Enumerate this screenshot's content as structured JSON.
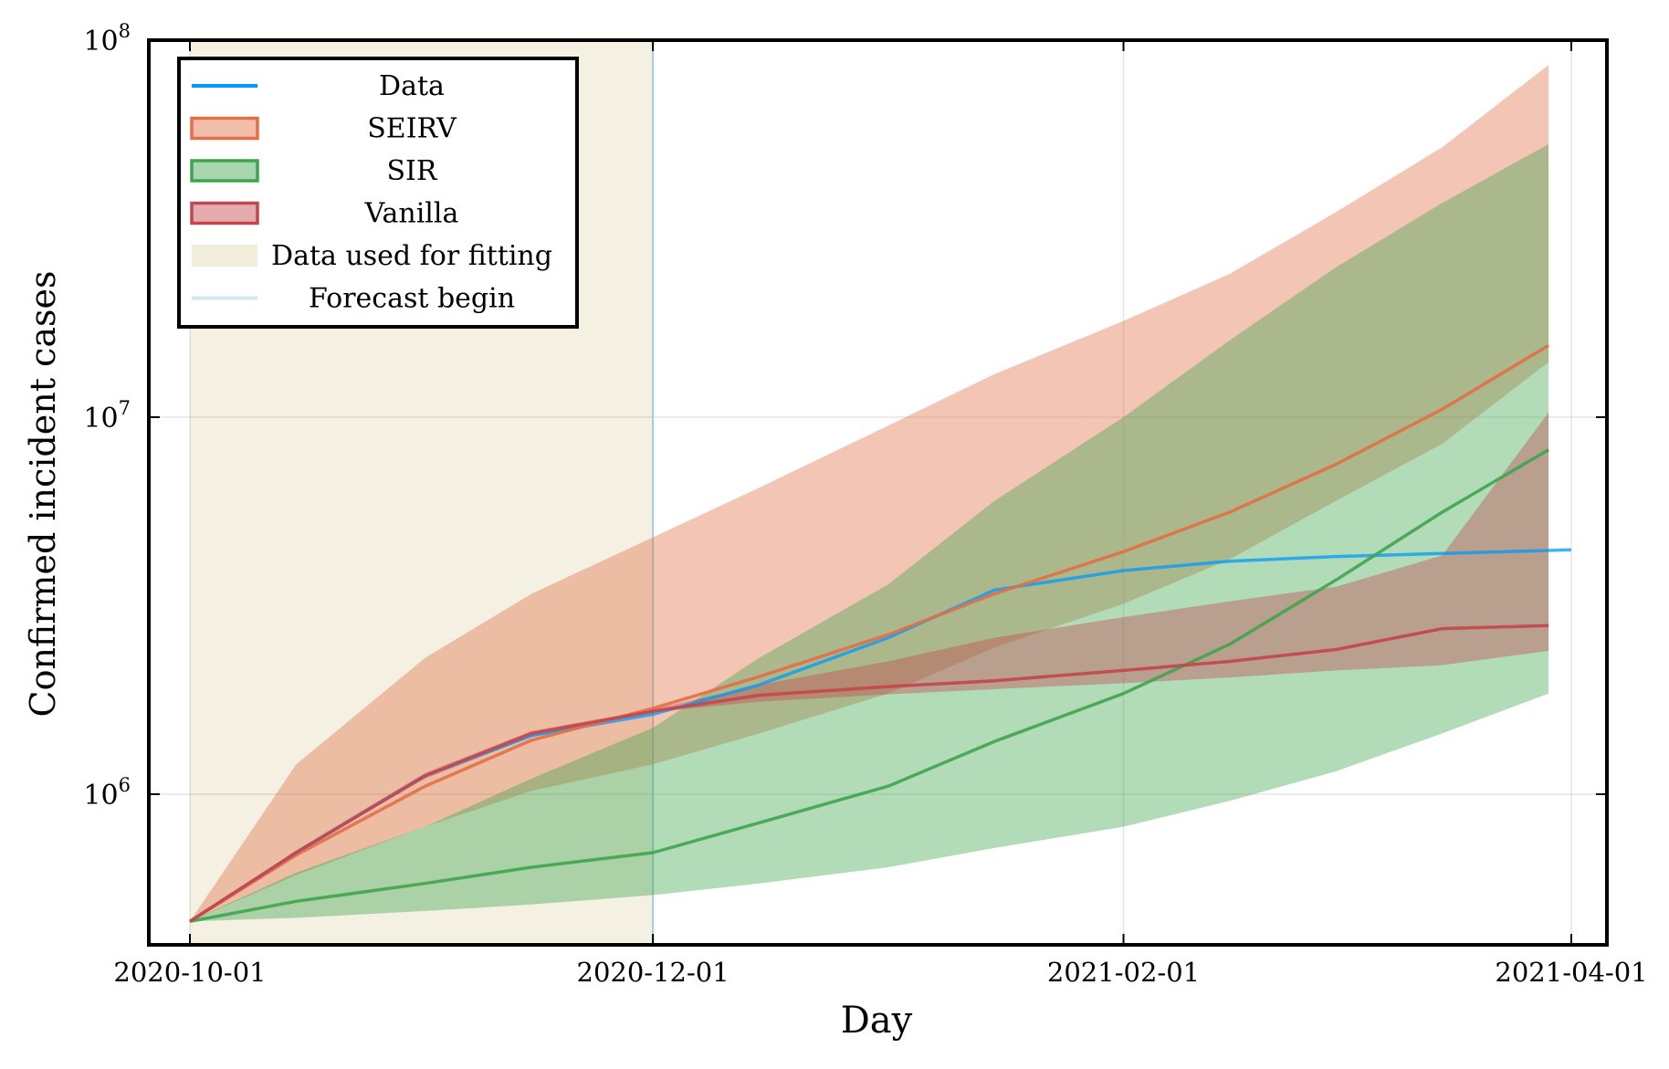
{
  "chart_data": {
    "type": "line",
    "title": "",
    "xlabel": "Day",
    "ylabel": "Confirmed incident cases",
    "x_scale": "date",
    "y_scale": "log",
    "xlim": [
      "2020-10-01",
      "2021-04-01"
    ],
    "ylim": [
      400000,
      100000000
    ],
    "x_ticks": [
      "2020-10-01",
      "2020-12-01",
      "2021-02-01",
      "2021-04-01"
    ],
    "y_ticks": [
      {
        "value": 1000000,
        "base": "10",
        "exp": "6"
      },
      {
        "value": 10000000,
        "base": "10",
        "exp": "7"
      },
      {
        "value": 100000000,
        "base": "10",
        "exp": "8"
      }
    ],
    "grid": true,
    "legend_position": "top-left",
    "legend": [
      {
        "label": "Data",
        "kind": "line",
        "color": "#009AFA"
      },
      {
        "label": "SEIRV",
        "kind": "band",
        "color": "#E26F46"
      },
      {
        "label": "SIR",
        "kind": "band",
        "color": "#3EA44E"
      },
      {
        "label": "Vanilla",
        "kind": "band",
        "color": "#C3454D"
      },
      {
        "label": "Data used for fitting",
        "kind": "shade",
        "color": "#EFEAD5"
      },
      {
        "label": "Forecast begin",
        "kind": "vline",
        "color": "#CFE9EE"
      }
    ],
    "fit_window": [
      "2020-10-01",
      "2020-12-01"
    ],
    "forecast_begin": "2020-12-01",
    "series": [
      {
        "name": "Data",
        "color": "#009AFA",
        "x": [
          "2020-10-01",
          "2020-10-15",
          "2020-11-01",
          "2020-11-15",
          "2020-12-01",
          "2020-12-15",
          "2021-01-01",
          "2021-01-15",
          "2021-02-01",
          "2021-02-15",
          "2021-03-01",
          "2021-03-15",
          "2021-04-01"
        ],
        "y": [
          460000,
          700000,
          1120000,
          1430000,
          1630000,
          1950000,
          2600000,
          3480000,
          3920000,
          4150000,
          4270000,
          4350000,
          4450000
        ]
      },
      {
        "name": "SEIRV",
        "color": "#E26F46",
        "x": [
          "2020-10-01",
          "2020-10-15",
          "2020-11-01",
          "2020-11-15",
          "2020-12-01",
          "2020-12-15",
          "2021-01-01",
          "2021-01-15",
          "2021-02-01",
          "2021-02-15",
          "2021-03-01",
          "2021-03-15",
          "2021-03-29"
        ],
        "y": [
          460000,
          690000,
          1050000,
          1390000,
          1690000,
          2050000,
          2650000,
          3400000,
          4400000,
          5600000,
          7500000,
          10500000,
          15500000
        ],
        "lower": [
          460000,
          610000,
          820000,
          1020000,
          1200000,
          1450000,
          1850000,
          2450000,
          3200000,
          4200000,
          6000000,
          8500000,
          14000000
        ],
        "upper": [
          460000,
          1200000,
          2300000,
          3400000,
          4800000,
          6500000,
          9500000,
          13000000,
          18000000,
          24000000,
          35000000,
          52000000,
          86000000
        ]
      },
      {
        "name": "SIR",
        "color": "#3EA44E",
        "x": [
          "2020-10-01",
          "2020-10-15",
          "2020-11-01",
          "2020-11-15",
          "2020-12-01",
          "2020-12-15",
          "2021-01-01",
          "2021-01-15",
          "2021-02-01",
          "2021-02-15",
          "2021-03-01",
          "2021-03-15",
          "2021-03-29"
        ],
        "y": [
          460000,
          520000,
          580000,
          640000,
          700000,
          840000,
          1050000,
          1380000,
          1850000,
          2500000,
          3700000,
          5600000,
          8200000
        ],
        "lower": [
          460000,
          470000,
          490000,
          510000,
          540000,
          580000,
          640000,
          720000,
          820000,
          960000,
          1150000,
          1450000,
          1850000
        ],
        "upper": [
          460000,
          620000,
          820000,
          1100000,
          1500000,
          2300000,
          3600000,
          6000000,
          10000000,
          16000000,
          25000000,
          37000000,
          53000000
        ]
      },
      {
        "name": "Vanilla",
        "color": "#C3454D",
        "x": [
          "2020-10-01",
          "2020-10-15",
          "2020-11-01",
          "2020-11-15",
          "2020-12-01",
          "2020-12-15",
          "2021-01-01",
          "2021-01-15",
          "2021-02-01",
          "2021-02-15",
          "2021-03-01",
          "2021-03-15",
          "2021-03-29"
        ],
        "y": [
          460000,
          700000,
          1120000,
          1450000,
          1660000,
          1830000,
          1930000,
          2000000,
          2130000,
          2250000,
          2420000,
          2750000,
          2800000
        ],
        "lower": [
          460000,
          700000,
          1100000,
          1420000,
          1650000,
          1760000,
          1840000,
          1900000,
          1970000,
          2040000,
          2130000,
          2200000,
          2400000
        ],
        "upper": [
          460000,
          710000,
          1140000,
          1470000,
          1680000,
          1950000,
          2250000,
          2600000,
          2950000,
          3250000,
          3550000,
          4300000,
          10300000
        ]
      }
    ]
  }
}
